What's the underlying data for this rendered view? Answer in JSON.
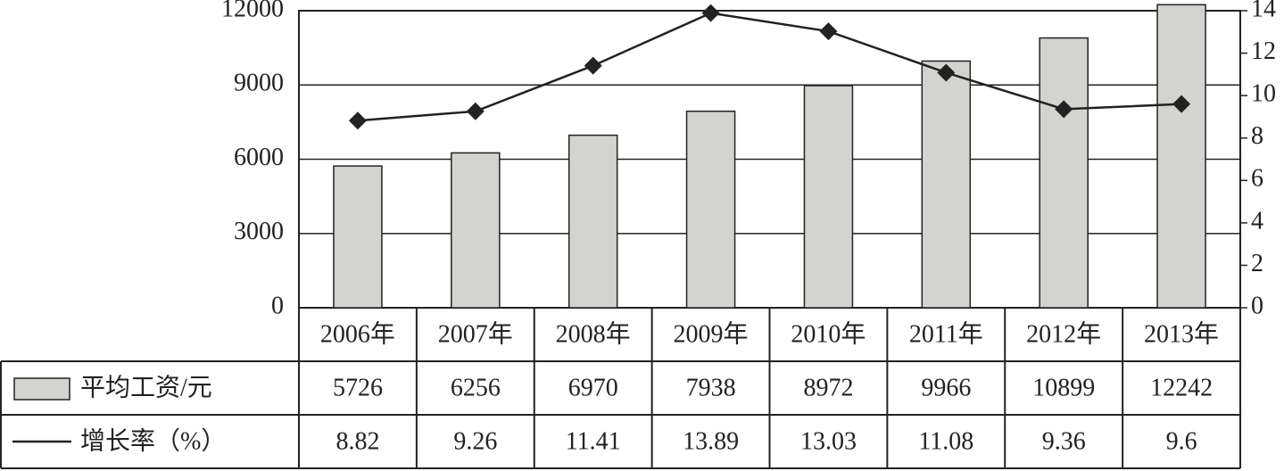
{
  "chart_data": {
    "type": "bar",
    "categories": [
      "2006年",
      "2007年",
      "2008年",
      "2009年",
      "2010年",
      "2011年",
      "2012年",
      "2013年"
    ],
    "series": [
      {
        "name": "平均工资/元",
        "type": "bar",
        "color": "#d3d3cf",
        "values": [
          5726,
          6256,
          6970,
          7938,
          8972,
          9966,
          10899,
          12242
        ]
      },
      {
        "name": "增长率（%）",
        "type": "line",
        "axis": "y2",
        "color": "#222222",
        "values": [
          8.82,
          9.26,
          11.41,
          13.89,
          13.03,
          11.08,
          9.36,
          9.6
        ]
      }
    ],
    "ylim": [
      0,
      12000
    ],
    "yticks": [
      0,
      3000,
      6000,
      9000,
      12000
    ],
    "y2lim": [
      0,
      14
    ],
    "y2ticks": [
      0,
      2,
      4,
      6,
      8,
      10,
      12,
      14
    ],
    "grid": true
  }
}
